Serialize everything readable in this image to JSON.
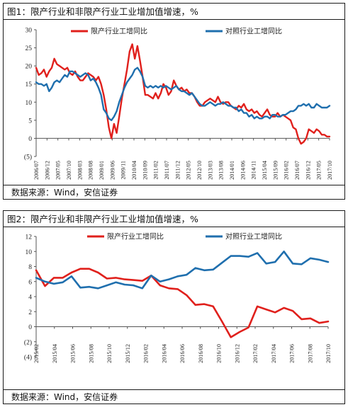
{
  "panel1": {
    "title": "图1：限产行业和非限产行业工业增加值增速，%",
    "source": "数据来源：Wind，安信证券"
  },
  "panel2": {
    "title": "图2：限产行业和非限产行业工业增加值增速，%",
    "source": "数据来源：Wind，安信证券"
  },
  "chart_data": [
    {
      "type": "line",
      "title": "图1：限产行业和非限产行业工业增加值增速，%",
      "ylim": [
        -5,
        30
      ],
      "yticks": [
        30,
        25,
        20,
        15,
        10,
        5,
        0,
        -5
      ],
      "ytick_labels": [
        "30",
        "25",
        "20",
        "15",
        "10",
        "5",
        "0",
        "(5)"
      ],
      "xtick_labels": [
        "2006/07",
        "2006/12",
        "2007/05",
        "2007/10",
        "2008/03",
        "2008/08",
        "2009/01",
        "2009/06",
        "2009/11",
        "2010/04",
        "2010/09",
        "2011/02",
        "2011/07",
        "2011/12",
        "2012/05",
        "2012/10",
        "2013/03",
        "2013/08",
        "2014/01",
        "2014/06",
        "2014/11",
        "2015/04",
        "2015/09",
        "2016/02",
        "2016/07",
        "2016/12",
        "2017/05",
        "2017/10"
      ],
      "grid": false,
      "legend_position": "top",
      "series": [
        {
          "name": "限产行业工增同比",
          "color": "#e0201c",
          "values": [
            19.5,
            17.5,
            18.0,
            19.0,
            17.0,
            18.5,
            19.5,
            22.0,
            20.5,
            20.0,
            19.5,
            19.0,
            19.5,
            18.0,
            17.5,
            18.5,
            17.0,
            16.0,
            16.0,
            17.0,
            18.0,
            17.5,
            17.0,
            16.0,
            17.0,
            15.0,
            12.0,
            8.0,
            3.0,
            0.0,
            4.0,
            1.5,
            6.0,
            11.0,
            15.0,
            19.0,
            24.0,
            26.0,
            22.0,
            25.5,
            21.5,
            17.0,
            12.0,
            12.0,
            11.5,
            11.0,
            12.5,
            11.0,
            12.5,
            15.0,
            14.0,
            12.0,
            13.0,
            16.0,
            14.5,
            13.5,
            14.0,
            13.0,
            13.5,
            12.5,
            12.5,
            11.5,
            10.0,
            9.0,
            9.0,
            10.0,
            10.5,
            11.0,
            10.5,
            10.0,
            11.5,
            10.0,
            9.5,
            10.0,
            10.0,
            9.0,
            8.5,
            8.0,
            9.0,
            8.5,
            9.5,
            8.0,
            7.5,
            8.0,
            7.0,
            7.5,
            6.5,
            6.0,
            7.0,
            8.0,
            6.5,
            6.0,
            6.0,
            7.0,
            6.0,
            6.5,
            6.0,
            5.5,
            5.0,
            3.0,
            2.5,
            0.0,
            -1.5,
            -1.0,
            0.0,
            2.5,
            2.0,
            1.5,
            2.5,
            2.0,
            1.0,
            1.0,
            0.5,
            0.5
          ]
        },
        {
          "name": "对照行业工增同比",
          "color": "#1f6fae",
          "values": [
            15.5,
            15.0,
            15.0,
            14.5,
            15.0,
            13.0,
            14.0,
            15.5,
            16.0,
            15.5,
            16.5,
            17.5,
            17.0,
            18.5,
            18.5,
            18.0,
            17.5,
            17.0,
            17.5,
            18.0,
            17.5,
            16.0,
            16.5,
            15.5,
            14.0,
            12.0,
            8.0,
            7.0,
            5.5,
            5.0,
            6.0,
            7.5,
            10.0,
            12.0,
            14.0,
            15.5,
            16.5,
            17.5,
            19.0,
            19.5,
            18.5,
            17.0,
            14.5,
            14.0,
            14.5,
            14.0,
            14.5,
            14.0,
            14.5,
            14.0,
            14.5,
            14.0,
            13.5,
            14.0,
            14.5,
            13.5,
            13.0,
            13.0,
            12.5,
            12.0,
            12.5,
            11.5,
            10.5,
            9.5,
            9.0,
            9.0,
            9.5,
            10.0,
            9.5,
            9.0,
            9.5,
            9.5,
            10.0,
            9.5,
            9.0,
            9.0,
            8.5,
            8.5,
            7.5,
            8.0,
            7.0,
            7.0,
            6.0,
            6.5,
            5.5,
            6.0,
            5.5,
            5.5,
            6.0,
            6.0,
            5.5,
            6.5,
            6.5,
            6.0,
            6.0,
            6.5,
            6.5,
            7.0,
            7.5,
            7.5,
            8.0,
            9.0,
            9.0,
            9.5,
            9.0,
            9.5,
            8.5,
            8.5,
            9.5,
            9.0,
            8.5,
            8.5,
            8.5,
            9.0
          ]
        }
      ]
    },
    {
      "type": "line",
      "title": "图2：限产行业和非限产行业工业增加值增速，%",
      "ylim": [
        -4,
        12
      ],
      "yticks": [
        12,
        10,
        8,
        6,
        4,
        2,
        0,
        -2,
        -4
      ],
      "ytick_labels": [
        "12",
        "10",
        "8",
        "6",
        "4",
        "2",
        "0",
        "(2)",
        "(4)"
      ],
      "xtick_labels": [
        "2015/02",
        "2015/04",
        "2015/06",
        "2015/08",
        "2015/10",
        "2015/12",
        "2016/02",
        "2016/04",
        "2016/06",
        "2016/08",
        "2016/10",
        "2016/12",
        "2017/02",
        "2017/04",
        "2017/06",
        "2017/08",
        "2017/10"
      ],
      "grid": false,
      "legend_position": "top",
      "series": [
        {
          "name": "限产行业工增同比",
          "color": "#e0201c",
          "values": [
            7.5,
            5.4,
            6.5,
            6.5,
            7.2,
            7.7,
            7.7,
            7.2,
            6.4,
            6.5,
            6.3,
            6.2,
            6.1,
            6.8,
            5.5,
            5.1,
            5.0,
            4.2,
            2.9,
            3.0,
            2.7,
            0.7,
            -1.4,
            -0.7,
            -0.1,
            2.7,
            2.3,
            1.9,
            2.5,
            2.1,
            1.0,
            1.1,
            0.5,
            0.7
          ]
        },
        {
          "name": "对照行业工增同比",
          "color": "#1f6fae",
          "values": [
            6.5,
            6.0,
            5.7,
            5.9,
            6.7,
            5.2,
            5.3,
            5.1,
            5.5,
            5.9,
            5.6,
            5.5,
            5.1,
            6.8,
            6.0,
            6.3,
            6.7,
            6.9,
            7.8,
            7.5,
            7.6,
            8.5,
            9.4,
            9.4,
            9.3,
            9.8,
            8.4,
            8.6,
            10.0,
            8.4,
            8.3,
            9.1,
            8.9,
            8.6
          ]
        }
      ]
    }
  ]
}
